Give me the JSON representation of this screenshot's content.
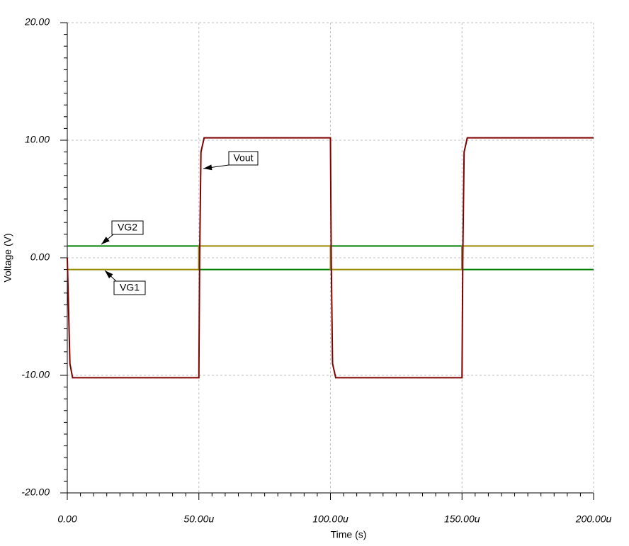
{
  "chart_data": {
    "type": "line",
    "xlabel": "Time (s)",
    "ylabel": "Voltage (V)",
    "xlim": [
      0,
      0.0002
    ],
    "xticks": [
      {
        "value": 0,
        "label": "0.00"
      },
      {
        "value": 5e-05,
        "label": "50.00u"
      },
      {
        "value": 0.0001,
        "label": "100.00u"
      },
      {
        "value": 0.00015,
        "label": "150.00u"
      },
      {
        "value": 0.0002,
        "label": "200.00u"
      }
    ],
    "ylim": [
      -20,
      20
    ],
    "yticks": [
      {
        "value": -20,
        "label": "-20.00"
      },
      {
        "value": -10,
        "label": "-10.00"
      },
      {
        "value": 0,
        "label": "0.00"
      },
      {
        "value": 10,
        "label": "10.00"
      },
      {
        "value": 20,
        "label": "20.00"
      }
    ],
    "grid": true,
    "series": [
      {
        "name": "Vout",
        "color": "#800000",
        "x": [
          0,
          1e-06,
          2e-06,
          5e-05,
          5.03e-05,
          5.08e-05,
          5.2e-05,
          0.0001,
          0.0001003,
          0.0001008,
          0.000102,
          0.00015,
          0.0001503,
          0.0001508,
          0.000152,
          0.0002
        ],
        "values": [
          0,
          -9,
          -10.2,
          -10.2,
          0,
          9,
          10.2,
          10.2,
          0,
          -9,
          -10.2,
          -10.2,
          0,
          9,
          10.2,
          10.2
        ]
      },
      {
        "name": "VG1",
        "color": "#9a8a00",
        "x": [
          0,
          5e-05,
          5e-05,
          0.0001,
          0.0001,
          0.00015,
          0.00015,
          0.0002
        ],
        "values": [
          -1,
          -1,
          1,
          1,
          -1,
          -1,
          1,
          1
        ]
      },
      {
        "name": "VG2",
        "color": "#008000",
        "x": [
          0,
          5e-05,
          5e-05,
          0.0001,
          0.0001,
          0.00015,
          0.00015,
          0.0002
        ],
        "values": [
          1,
          1,
          -1,
          -1,
          1,
          1,
          -1,
          -1
        ]
      }
    ]
  }
}
